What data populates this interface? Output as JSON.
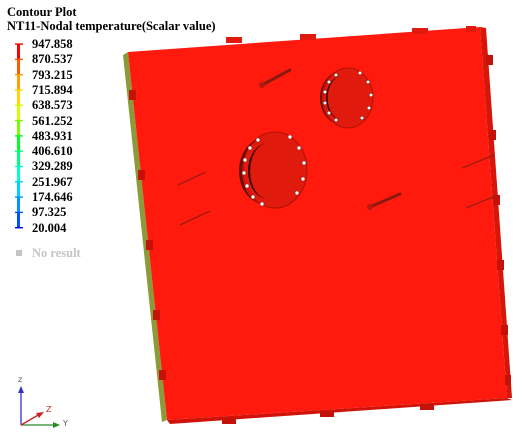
{
  "plot": {
    "title": "Contour Plot",
    "subtitle": "NT11-Nodal temperature(Scalar value)"
  },
  "legend": {
    "values": [
      "947.858",
      "870.537",
      "793.215",
      "715.894",
      "638.573",
      "561.252",
      "483.931",
      "406.610",
      "329.289",
      "251.967",
      "174.646",
      "97.325",
      "20.004"
    ],
    "colors": [
      "#ff0000",
      "#ff5a00",
      "#ffa000",
      "#ffd400",
      "#d4ff00",
      "#7aff00",
      "#00ff22",
      "#00ff80",
      "#00ffd0",
      "#00d0ff",
      "#0096ff",
      "#0050ff",
      "#0000ff"
    ],
    "no_result_label": "No result",
    "no_result_color": "#c4c4c4"
  },
  "triad": {
    "vertical_label": "z",
    "horizontal_label": "Y",
    "diagonal_label": "Z"
  },
  "model": {
    "surface_color": "#ff1a0d",
    "edge_color": "#e01a0d",
    "side_color": "#9aa05a"
  }
}
